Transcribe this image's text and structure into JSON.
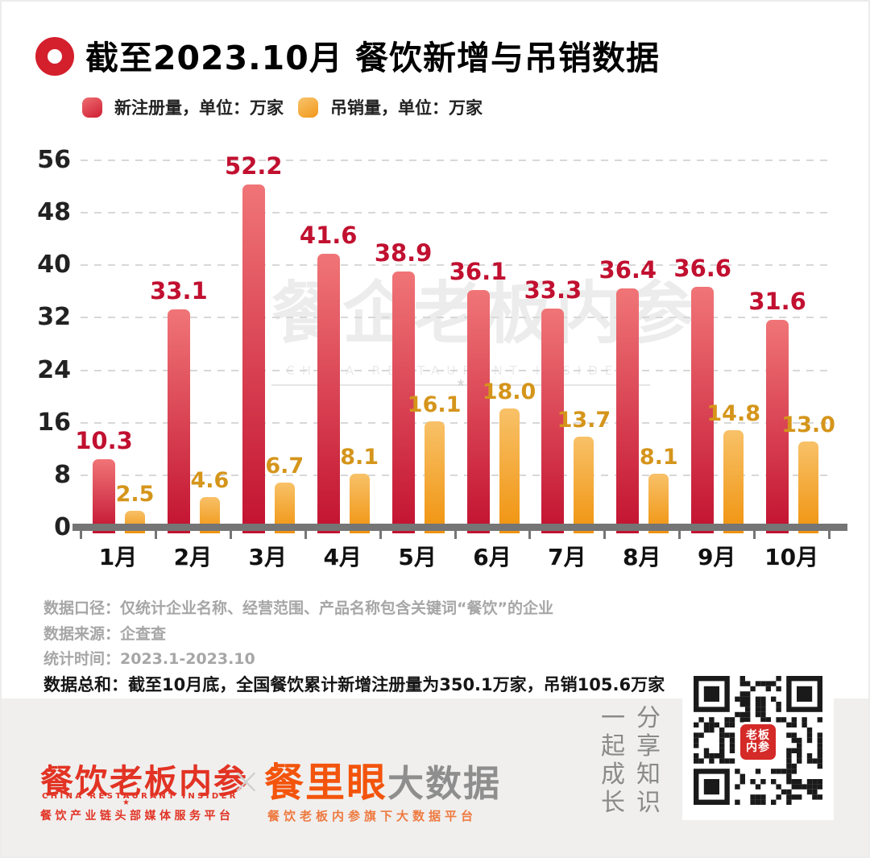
{
  "header": {
    "title": "截至2023.10月 餐饮新增与吊销数据"
  },
  "legend": {
    "item1": "新注册量，单位：万家",
    "item2": "吊销量，单位：万家"
  },
  "chart_data": {
    "type": "bar",
    "title": "截至2023.10月 餐饮新增与吊销数据",
    "categories": [
      "1月",
      "2月",
      "3月",
      "4月",
      "5月",
      "6月",
      "7月",
      "8月",
      "9月",
      "10月"
    ],
    "series": [
      {
        "name": "新注册量",
        "unit": "万家",
        "values": [
          10.3,
          33.1,
          52.2,
          41.6,
          38.9,
          36.1,
          33.3,
          36.4,
          36.6,
          31.6
        ],
        "labels": [
          "10.3",
          "33.1",
          "52.2",
          "41.6",
          "38.9",
          "36.1",
          "33.3",
          "36.4",
          "36.6",
          "31.6"
        ],
        "color_top": "#f07577",
        "color_bottom": "#c21230",
        "label_color": "#c11030"
      },
      {
        "name": "吊销量",
        "unit": "万家",
        "values": [
          2.5,
          4.6,
          6.7,
          8.1,
          16.1,
          18.0,
          13.7,
          8.1,
          14.8,
          13.0
        ],
        "labels": [
          "2.5",
          "4.6",
          "6.7",
          "8.1",
          "16.1",
          "18.0",
          "13.7",
          "8.1",
          "14.8",
          "13.0"
        ],
        "color_top": "#f8c168",
        "color_bottom": "#f0930e",
        "label_color": "#d5951b"
      }
    ],
    "ylim": [
      0,
      56
    ],
    "yticks": [
      0,
      8,
      16,
      24,
      32,
      40,
      48,
      56
    ],
    "ytick_labels": [
      "0",
      "8",
      "16",
      "24",
      "32",
      "40",
      "48",
      "56"
    ],
    "grid": "horizontal-dashed",
    "legend_position": "top-left"
  },
  "watermark": {
    "text_cn": "餐企老板内参",
    "text_en": "CHINA RESTAURANT INSIDER",
    "star": "★"
  },
  "notes": [
    {
      "text": "数据口径：仅统计企业名称、经营范围、产品名称包含关键词“餐饮”的企业",
      "strong": false
    },
    {
      "text": "数据来源：企查查",
      "strong": false
    },
    {
      "text": "统计时间：2023.1-2023.10",
      "strong": false
    },
    {
      "text": "数据总和：截至10月底，全国餐饮累计新增注册量为350.1万家，吊销105.6万家",
      "strong": true
    }
  ],
  "footer": {
    "logo_cn": "餐饮老板内参",
    "logo_en": "CHINA RESTAURANT INSIDER",
    "logo_star": "★",
    "logo_tagline": "餐饮产业链头部媒体服务平台",
    "separator": "×",
    "brand_orange": "餐里眼",
    "brand_gray": "大数据",
    "brand_sub": "餐饮老板内参旗下大数据平台",
    "slogan_col1": "一起成长",
    "slogan_col2": "分享知识",
    "qr_logo_line1": "老板",
    "qr_logo_line2": "内参"
  },
  "colors": {
    "accent_red": "#d41f2c",
    "bar_red_top": "#f07577",
    "bar_red_bottom": "#c21230",
    "bar_orange_top": "#f8c168",
    "bar_orange_bottom": "#f0930e",
    "label_red": "#c11030",
    "label_orange": "#d5951b",
    "footer_band": "#f0efee",
    "axis_gray": "#757575"
  }
}
